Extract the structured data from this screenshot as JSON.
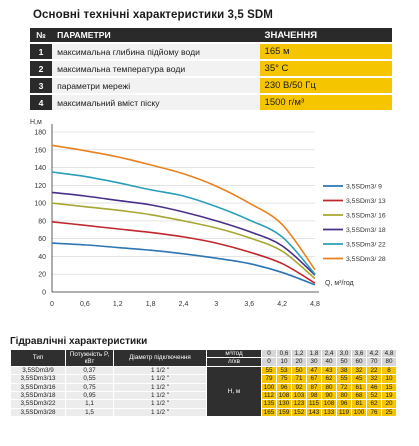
{
  "page": {
    "title": "Основні технічні характеристики 3,5 SDM"
  },
  "spec_table": {
    "header": {
      "number": "№",
      "parameter": "ПАРАМЕТРИ",
      "value": "ЗНАЧЕННЯ"
    },
    "rows": [
      {
        "number": "1",
        "parameter": "максимальна глибина підйому води",
        "value": "165 м"
      },
      {
        "number": "2",
        "parameter": "максимальна температура води",
        "value": "35° С"
      },
      {
        "number": "3",
        "parameter": "параметри мережі",
        "value": "230 В/50 Гц"
      },
      {
        "number": "4",
        "parameter": "максимальний вміст піску",
        "value": "1500 г/м³"
      }
    ]
  },
  "chart_data": {
    "type": "line",
    "ylabel": "Н,м",
    "xlabel": "Q, м³/год",
    "xlim": [
      0,
      4.8
    ],
    "ylim": [
      0,
      180
    ],
    "xticks": [
      "0",
      "0,6",
      "1,2",
      "1,8",
      "2,4",
      "3",
      "3,6",
      "4,2",
      "4,8"
    ],
    "yticks": [
      "0",
      "20",
      "40",
      "60",
      "80",
      "100",
      "120",
      "140",
      "160",
      "180"
    ],
    "grid": true,
    "legend_position": "right",
    "x": [
      0,
      0.6,
      1.2,
      1.8,
      2.4,
      3.0,
      3.6,
      4.2,
      4.8
    ],
    "series": [
      {
        "name": "3,5SDm3/ 9",
        "color": "#2e75b6",
        "values": [
          55,
          53,
          50,
          47,
          43,
          38,
          32,
          22,
          8
        ]
      },
      {
        "name": "3,5SDm3/ 13",
        "color": "#c0272d",
        "values": [
          79,
          75,
          71,
          67,
          62,
          55,
          45,
          32,
          10
        ]
      },
      {
        "name": "3,5SDm3/ 16",
        "color": "#a7a630",
        "values": [
          100,
          96,
          92,
          87,
          80,
          72,
          61,
          46,
          15
        ]
      },
      {
        "name": "3,5SDm3/ 18",
        "color": "#4a2f8a",
        "values": [
          112,
          108,
          103,
          98,
          90,
          80,
          68,
          52,
          19
        ]
      },
      {
        "name": "3,5SDm3/ 22",
        "color": "#2a9fb8",
        "values": [
          135,
          130,
          123,
          115,
          108,
          96,
          81,
          62,
          20
        ]
      },
      {
        "name": "3,5SDm3/ 28",
        "color": "#e8821e",
        "values": [
          165,
          159,
          152,
          143,
          133,
          119,
          100,
          76,
          25
        ]
      }
    ]
  },
  "hydraulic": {
    "title": "Гідравлічні характеристики",
    "headers": {
      "type": "Тип",
      "power": "Потужність P, кВт",
      "pipe": "Діаметр підключення",
      "unit_flow": "м³/год",
      "unit_flow2": "л/хв",
      "head": "Н, м"
    },
    "flow_m3h": [
      "0",
      "0,6",
      "1,2",
      "1,8",
      "2,4",
      "3,0",
      "3,6",
      "4,2",
      "4,8"
    ],
    "flow_lmin": [
      "0",
      "10",
      "20",
      "30",
      "40",
      "50",
      "60",
      "70",
      "80"
    ],
    "rows": [
      {
        "type": "3,5SDm3/9",
        "power": "0,37",
        "pipe": "1 1/2 \"",
        "head": [
          "55",
          "53",
          "50",
          "47",
          "43",
          "38",
          "32",
          "22",
          "8"
        ]
      },
      {
        "type": "3,5SDm3/13",
        "power": "0,55",
        "pipe": "1 1/2 \"",
        "head": [
          "79",
          "75",
          "71",
          "67",
          "62",
          "55",
          "45",
          "32",
          "10"
        ]
      },
      {
        "type": "3,5SDm3/16",
        "power": "0,75",
        "pipe": "1 1/2 \"",
        "head": [
          "100",
          "96",
          "92",
          "87",
          "80",
          "72",
          "61",
          "46",
          "15"
        ]
      },
      {
        "type": "3,5SDm3/18",
        "power": "0,95",
        "pipe": "1 1/2 \"",
        "head": [
          "112",
          "108",
          "103",
          "98",
          "90",
          "80",
          "68",
          "52",
          "19"
        ]
      },
      {
        "type": "3,5SDm3/22",
        "power": "1,1",
        "pipe": "1 1/2 \"",
        "head": [
          "135",
          "130",
          "123",
          "115",
          "108",
          "96",
          "81",
          "62",
          "20"
        ]
      },
      {
        "type": "3,5SDm3/28",
        "power": "1,5",
        "pipe": "1 1/2 \"",
        "head": [
          "165",
          "159",
          "152",
          "143",
          "133",
          "119",
          "100",
          "76",
          "25"
        ]
      }
    ]
  }
}
